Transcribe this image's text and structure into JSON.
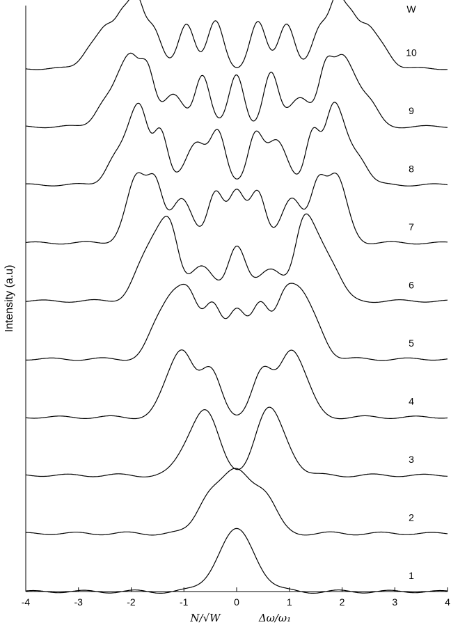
{
  "chart_data": {
    "type": "line",
    "xlim": [
      -4,
      4
    ],
    "xticks": [
      "-4",
      "-3",
      "-2",
      "-1",
      "0",
      "1",
      "2",
      "3",
      "4"
    ],
    "ylabel": "Intensity (a.u)",
    "xlabel_left": "N/√W",
    "xlabel_right": "Δω/ω₁",
    "stack_label_header": "W",
    "grid": false,
    "series": [
      {
        "name": "1",
        "peaks": [
          [
            0,
            1.0,
            0.35
          ]
        ]
      },
      {
        "name": "2",
        "peaks": [
          [
            -0.55,
            0.5,
            0.22
          ],
          [
            0.0,
            1.0,
            0.3
          ],
          [
            0.55,
            0.5,
            0.22
          ]
        ]
      },
      {
        "name": "3",
        "peaks": [
          [
            -0.95,
            0.3,
            0.22
          ],
          [
            -0.58,
            1.0,
            0.24
          ],
          [
            0.58,
            1.0,
            0.24
          ],
          [
            0.95,
            0.3,
            0.22
          ]
        ]
      },
      {
        "name": "4",
        "peaks": [
          [
            -1.3,
            0.4,
            0.2
          ],
          [
            -1.0,
            0.95,
            0.2
          ],
          [
            -0.5,
            0.75,
            0.2
          ],
          [
            0.5,
            0.75,
            0.2
          ],
          [
            1.0,
            0.95,
            0.2
          ],
          [
            1.3,
            0.4,
            0.2
          ]
        ]
      },
      {
        "name": "5",
        "peaks": [
          [
            -1.5,
            0.5,
            0.2
          ],
          [
            -1.2,
            0.75,
            0.18
          ],
          [
            -0.9,
            0.95,
            0.18
          ],
          [
            -0.45,
            0.85,
            0.17
          ],
          [
            0,
            0.8,
            0.17
          ],
          [
            0.45,
            0.85,
            0.17
          ],
          [
            0.9,
            0.95,
            0.18
          ],
          [
            1.2,
            0.75,
            0.18
          ],
          [
            1.5,
            0.5,
            0.2
          ]
        ]
      },
      {
        "name": "6",
        "peaks": [
          [
            -1.8,
            0.5,
            0.2
          ],
          [
            -1.5,
            0.75,
            0.18
          ],
          [
            -1.25,
            1.0,
            0.16
          ],
          [
            -0.65,
            0.55,
            0.25
          ],
          [
            0,
            0.85,
            0.17
          ],
          [
            0.65,
            0.55,
            0.25
          ],
          [
            1.25,
            1.0,
            0.16
          ],
          [
            1.5,
            0.75,
            0.18
          ],
          [
            1.8,
            0.5,
            0.2
          ]
        ]
      },
      {
        "name": "7",
        "peaks": [
          [
            -2.0,
            0.55,
            0.18
          ],
          [
            -1.85,
            0.6,
            0.15
          ],
          [
            -1.55,
            0.98,
            0.15
          ],
          [
            -1.05,
            0.7,
            0.2
          ],
          [
            -0.4,
            0.85,
            0.15
          ],
          [
            0,
            0.8,
            0.15
          ],
          [
            0.4,
            0.85,
            0.15
          ],
          [
            1.05,
            0.7,
            0.2
          ],
          [
            1.55,
            0.98,
            0.15
          ],
          [
            1.85,
            0.6,
            0.15
          ],
          [
            2.0,
            0.55,
            0.18
          ]
        ]
      },
      {
        "name": "8",
        "peaks": [
          [
            -2.3,
            0.45,
            0.18
          ],
          [
            -2.0,
            0.65,
            0.15
          ],
          [
            -1.8,
            0.95,
            0.14
          ],
          [
            -1.45,
            0.9,
            0.14
          ],
          [
            -0.75,
            0.7,
            0.2
          ],
          [
            -0.35,
            0.8,
            0.14
          ],
          [
            0.35,
            0.8,
            0.14
          ],
          [
            0.75,
            0.7,
            0.2
          ],
          [
            1.45,
            0.9,
            0.14
          ],
          [
            1.8,
            0.95,
            0.14
          ],
          [
            2.0,
            0.65,
            0.15
          ],
          [
            2.3,
            0.45,
            0.18
          ]
        ]
      },
      {
        "name": "9",
        "peaks": [
          [
            -2.5,
            0.4,
            0.18
          ],
          [
            -2.2,
            0.6,
            0.15
          ],
          [
            -1.98,
            0.85,
            0.14
          ],
          [
            -1.7,
            0.95,
            0.14
          ],
          [
            -1.2,
            0.5,
            0.2
          ],
          [
            -0.65,
            0.85,
            0.14
          ],
          [
            0,
            0.85,
            0.14
          ],
          [
            0.65,
            0.85,
            0.14
          ],
          [
            1.2,
            0.5,
            0.2
          ],
          [
            1.7,
            0.95,
            0.14
          ],
          [
            1.98,
            0.85,
            0.14
          ],
          [
            2.2,
            0.6,
            0.15
          ],
          [
            2.5,
            0.4,
            0.18
          ]
        ]
      },
      {
        "name": "10",
        "peaks": [
          [
            -2.75,
            0.35,
            0.18
          ],
          [
            -2.45,
            0.55,
            0.16
          ],
          [
            -2.15,
            0.75,
            0.14
          ],
          [
            -1.9,
            0.98,
            0.13
          ],
          [
            -1.6,
            0.65,
            0.16
          ],
          [
            -0.95,
            0.75,
            0.15
          ],
          [
            -0.4,
            0.75,
            0.15
          ],
          [
            0.4,
            0.75,
            0.15
          ],
          [
            0.95,
            0.75,
            0.15
          ],
          [
            1.6,
            0.65,
            0.16
          ],
          [
            1.9,
            0.98,
            0.13
          ],
          [
            2.15,
            0.75,
            0.14
          ],
          [
            2.45,
            0.55,
            0.16
          ],
          [
            2.75,
            0.35,
            0.18
          ]
        ]
      }
    ]
  }
}
